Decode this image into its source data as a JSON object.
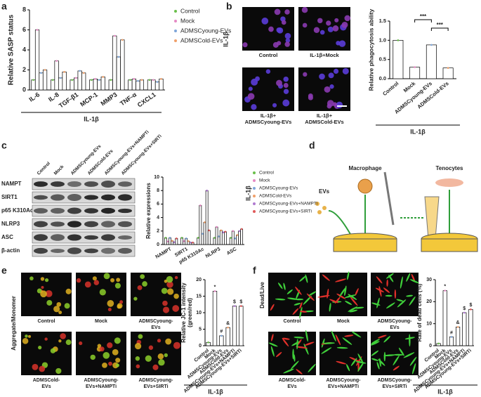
{
  "panel_labels": [
    "a",
    "b",
    "c",
    "d",
    "e",
    "f"
  ],
  "chart_data": [
    {
      "type": "bar",
      "ylabel": "Relative SASP status",
      "categories": [
        "IL-6",
        "IL-8",
        "TGF-β1",
        "MCP-1",
        "MMP3",
        "TNF-α",
        "CXCL1"
      ],
      "series": [
        {
          "name": "Control",
          "color": "#6abf4b",
          "values": [
            1,
            1,
            1,
            1,
            1,
            1,
            1
          ]
        },
        {
          "name": "Mock",
          "color": "#e58ac4",
          "values": [
            6.0,
            2.9,
            1.2,
            1.1,
            5.4,
            1.1,
            1.0
          ]
        },
        {
          "name": "ADMSCyoung-EVs",
          "color": "#7fa6d9",
          "values": [
            1.7,
            1.2,
            1.9,
            1.0,
            3.3,
            0.9,
            0.8
          ]
        },
        {
          "name": "ADMSCold-EVs",
          "color": "#f0a06a",
          "values": [
            2.0,
            1.8,
            1.7,
            1.3,
            5.0,
            1.0,
            1.1
          ]
        }
      ],
      "ylim": [
        0,
        8
      ],
      "yticks": [
        0,
        2,
        4,
        6,
        8
      ],
      "group_label": "IL-1β",
      "legend_group_label": "IL-1β"
    },
    {
      "type": "bar",
      "ylabel": "Relative phagocytosis ability",
      "categories": [
        "Control",
        "Mock",
        "ADMSCyoung-EVs",
        "ADMSCold-EVs"
      ],
      "values": [
        1.0,
        0.3,
        0.88,
        0.28
      ],
      "colors": [
        "#6abf4b",
        "#e58ac4",
        "#7fa6d9",
        "#f0a06a"
      ],
      "ylim": [
        0,
        1.5
      ],
      "yticks": [
        {
          "value": 0,
          "label": "0.0"
        },
        0.5,
        {
          "value": 1,
          "label": "1.0"
        },
        1.5
      ],
      "annotations": [
        "***",
        "***"
      ],
      "group_label": "IL-1β"
    },
    {
      "type": "bar",
      "ylabel": "Relative expressions",
      "categories": [
        "NAMPT",
        "SIRT1",
        "p65 K310Ac",
        "NLRP3",
        "ASC"
      ],
      "series": [
        {
          "name": "Control",
          "color": "#6abf4b",
          "values": [
            1,
            1,
            1,
            1,
            1
          ]
        },
        {
          "name": "Mock",
          "color": "#e58ac4",
          "values": [
            0.45,
            0.5,
            5.8,
            2.6,
            2.0
          ]
        },
        {
          "name": "ADMSCyoung-EVs",
          "color": "#7fa6d9",
          "values": [
            1.0,
            0.9,
            1.6,
            1.2,
            0.9
          ]
        },
        {
          "name": "ADMSCold-EVs",
          "color": "#f0a06a",
          "values": [
            0.55,
            0.5,
            3.3,
            2.1,
            1.4
          ]
        },
        {
          "name": "ADMSCyoung-EVs+NAMPTi",
          "color": "#b07ad0",
          "values": [
            0.35,
            0.3,
            8.0,
            1.8,
            2.0
          ]
        },
        {
          "name": "ADMSCyoung-EVs+SIRTi",
          "color": "#e05a5a",
          "values": [
            0.9,
            0.3,
            2.1,
            1.9,
            2.3
          ]
        }
      ],
      "ylim": [
        0,
        10
      ],
      "yticks": [
        0,
        2,
        4,
        6,
        8,
        10
      ],
      "legend_group_label": "IL-1β"
    },
    {
      "type": "bar",
      "ylabel": [
        "Relative JC-1 intensity",
        "(green/red)"
      ],
      "categories": [
        "Control",
        "Mock",
        "ADMSCyoung-EVs",
        "ADMSCold-EVs",
        "ADMSCyoung-EVs+NAMPTi",
        "ADMSCyoung-EVs+SIRTi"
      ],
      "values": [
        1,
        16.5,
        3,
        5.5,
        12,
        12
      ],
      "colors": [
        "#6abf4b",
        "#e58ac4",
        "#7fa6d9",
        "#f0a06a",
        "#b07ad0",
        "#e05a5a"
      ],
      "markers": [
        null,
        "*",
        "#",
        "&",
        "$",
        "$"
      ],
      "ylim": [
        0,
        20
      ],
      "yticks": [
        0,
        5,
        10,
        15,
        20
      ],
      "group_label": "IL-1β"
    },
    {
      "type": "bar",
      "ylabel": "Rate of dead cells (%)",
      "categories": [
        "Control",
        "Mock",
        "ADMSCyoung-EVs",
        "ADMSCold-EVs",
        "ADMSCyoung-EVs+NAMPTi",
        "ADMSCyoung-EVs+SIRTi"
      ],
      "values": [
        1,
        25,
        4,
        8.5,
        15,
        16.5
      ],
      "colors": [
        "#6abf4b",
        "#e58ac4",
        "#7fa6d9",
        "#f0a06a",
        "#b07ad0",
        "#e05a5a"
      ],
      "markers": [
        null,
        "*",
        "#",
        "&",
        "$",
        "$"
      ],
      "ylim": [
        0,
        30
      ],
      "yticks": [
        0,
        10,
        20,
        30
      ],
      "group_label": "IL-1β"
    }
  ],
  "panel_b_images": {
    "labels": [
      [
        "Control"
      ],
      [
        "IL-1β+Mock"
      ],
      [
        "IL-1β+",
        "ADMSCyoung-EVs"
      ],
      [
        "IL-1β+",
        "ADMSCold-EVs"
      ]
    ]
  },
  "panel_c_blot": {
    "columns": [
      "Control",
      "Mock",
      "ADMSCyoung-EVs",
      "ADMSCold-EVs",
      "ADMSCyoung-EVs+NAMPTi",
      "ADMSCyoung-EVs+SIRTi"
    ],
    "rows": [
      "NAMPT",
      "SIRT1",
      "p65 K310Ac",
      "NLRP3",
      "ASC",
      "β-actin"
    ]
  },
  "panel_d": {
    "labels": [
      "EVs",
      "Macrophage",
      "Tenocytes"
    ]
  },
  "panel_e_images": {
    "side_label": "Aggregate/Monomer",
    "labels": [
      [
        "Control"
      ],
      [
        "Mock"
      ],
      [
        "ADMSCyoung-",
        "EVs"
      ],
      [
        "ADMSCold-",
        "EVs"
      ],
      [
        "ADMSCyoung-",
        "EVs+NAMPTi"
      ],
      [
        "ADMSCyoung-",
        "EVs+SIRTi"
      ]
    ]
  },
  "panel_f_images": {
    "side_label": "Dead/Live",
    "labels": [
      [
        "Control"
      ],
      [
        "Mock"
      ],
      [
        "ADMSCyoung-",
        "EVs"
      ],
      [
        "ADMSCold-",
        "EVs"
      ],
      [
        "ADMSCyoung-",
        "EVs+NAMPTi"
      ],
      [
        "ADMSCyoung-",
        "EVs+SIRTi"
      ]
    ]
  }
}
